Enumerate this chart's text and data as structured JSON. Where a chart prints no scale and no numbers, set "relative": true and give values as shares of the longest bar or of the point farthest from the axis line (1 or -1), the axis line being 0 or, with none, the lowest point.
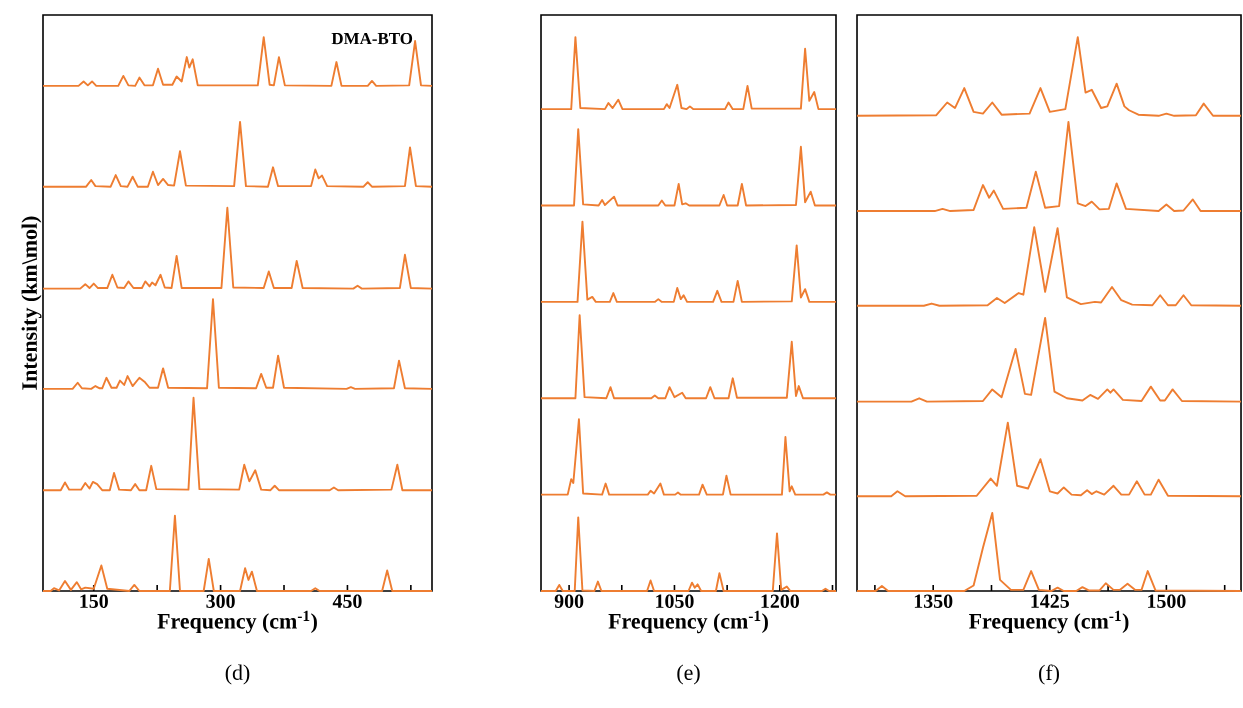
{
  "chart_data": [
    {
      "type": "line",
      "relative": true,
      "xlabel": "Frequency (cm$^{-1}$)",
      "ylabel": "Intensity (km\\mol)",
      "subtitle": "(d)",
      "annotations": [
        "DMA-BTO"
      ],
      "xlim": [
        90,
        550
      ],
      "xticks": [
        150,
        {
          "value": 225,
          "label": null
        },
        300,
        {
          "value": 375,
          "label": null
        },
        450,
        {
          "value": 525,
          "label": null
        }
      ],
      "series": [
        {
          "color": "#ee7d31",
          "x": [
            90,
            99,
            103,
            109,
            116,
            123,
            130,
            135,
            140,
            150,
            159,
            166,
            192,
            198,
            204,
            240,
            246,
            252,
            280,
            286,
            292,
            323,
            329,
            333,
            337,
            343,
            407,
            412,
            417,
            491,
            497,
            503,
            550
          ],
          "values": [
            0,
            0,
            0.005,
            0.001,
            0.018,
            0.002,
            0.016,
            0.003,
            0.006,
            0.004,
            0.046,
            0.004,
            0,
            0.011,
            0,
            0,
            0.136,
            0,
            0,
            0.058,
            0,
            0,
            0.041,
            0.02,
            0.035,
            0,
            0,
            0.005,
            0,
            0,
            0.037,
            0,
            0
          ]
        },
        {
          "color": "#ee7d31",
          "x": [
            90,
            111,
            116,
            121,
            135,
            140,
            145,
            149,
            154,
            160,
            169,
            174,
            180,
            194,
            199,
            204,
            212,
            218,
            224,
            262,
            268,
            275,
            322,
            328,
            334,
            341,
            348,
            359,
            364,
            369,
            429,
            434,
            439,
            502,
            509,
            515,
            550
          ],
          "values": [
            0.182,
            0.182,
            0.196,
            0.183,
            0.183,
            0.195,
            0.185,
            0.197,
            0.193,
            0.182,
            0.182,
            0.213,
            0.183,
            0.182,
            0.193,
            0.182,
            0.182,
            0.226,
            0.184,
            0.183,
            0.349,
            0.184,
            0.183,
            0.228,
            0.198,
            0.218,
            0.183,
            0.182,
            0.19,
            0.182,
            0.182,
            0.187,
            0.182,
            0.183,
            0.228,
            0.182,
            0.182
          ]
        },
        {
          "color": "#ee7d31",
          "x": [
            90,
            125,
            131,
            136,
            147,
            152,
            157,
            160,
            165,
            171,
            177,
            181,
            186,
            190,
            196,
            204,
            210,
            216,
            226,
            232,
            238,
            284,
            291,
            298,
            342,
            348,
            354,
            362,
            368,
            375,
            449,
            454,
            459,
            505,
            511,
            518,
            550
          ],
          "values": [
            0.365,
            0.365,
            0.376,
            0.366,
            0.365,
            0.37,
            0.366,
            0.366,
            0.385,
            0.367,
            0.367,
            0.38,
            0.372,
            0.388,
            0.37,
            0.385,
            0.378,
            0.367,
            0.367,
            0.402,
            0.367,
            0.366,
            0.527,
            0.367,
            0.366,
            0.392,
            0.367,
            0.367,
            0.425,
            0.367,
            0.365,
            0.368,
            0.365,
            0.366,
            0.416,
            0.366,
            0.365
          ]
        },
        {
          "color": "#ee7d31",
          "x": [
            90,
            134,
            140,
            145,
            150,
            155,
            166,
            172,
            178,
            186,
            191,
            197,
            207,
            211,
            216,
            219,
            223,
            229,
            234,
            242,
            248,
            254,
            301,
            308,
            315,
            351,
            357,
            363,
            384,
            390,
            397,
            457,
            462,
            467,
            512,
            518,
            525,
            550
          ],
          "values": [
            0.546,
            0.546,
            0.554,
            0.547,
            0.555,
            0.547,
            0.547,
            0.571,
            0.548,
            0.547,
            0.559,
            0.547,
            0.547,
            0.559,
            0.55,
            0.557,
            0.552,
            0.571,
            0.548,
            0.547,
            0.605,
            0.547,
            0.547,
            0.692,
            0.548,
            0.547,
            0.577,
            0.547,
            0.547,
            0.596,
            0.547,
            0.546,
            0.551,
            0.546,
            0.547,
            0.607,
            0.547,
            0.546
          ]
        },
        {
          "color": "#ee7d31",
          "x": [
            90,
            141,
            147,
            152,
            170,
            176,
            182,
            190,
            196,
            202,
            214,
            220,
            226,
            232,
            238,
            245,
            252,
            259,
            316,
            323,
            330,
            356,
            362,
            368,
            407,
            412,
            416,
            420,
            426,
            469,
            474,
            479,
            518,
            524,
            531,
            550
          ],
          "values": [
            0.73,
            0.73,
            0.742,
            0.731,
            0.73,
            0.751,
            0.731,
            0.73,
            0.748,
            0.73,
            0.73,
            0.757,
            0.733,
            0.744,
            0.733,
            0.732,
            0.794,
            0.732,
            0.731,
            0.847,
            0.731,
            0.73,
            0.765,
            0.731,
            0.731,
            0.761,
            0.745,
            0.75,
            0.731,
            0.73,
            0.738,
            0.73,
            0.731,
            0.801,
            0.731,
            0.73
          ]
        },
        {
          "color": "#ee7d31",
          "x": [
            90,
            132,
            138,
            143,
            148,
            153,
            179,
            185,
            191,
            199,
            204,
            210,
            220,
            226,
            232,
            243,
            248,
            254,
            260,
            263,
            267,
            273,
            344,
            351,
            358,
            363,
            369,
            376,
            431,
            437,
            443,
            474,
            479,
            484,
            523,
            530,
            537,
            550
          ],
          "values": [
            0.912,
            0.912,
            0.92,
            0.913,
            0.92,
            0.912,
            0.912,
            0.93,
            0.913,
            0.912,
            0.927,
            0.913,
            0.913,
            0.943,
            0.914,
            0.914,
            0.929,
            0.92,
            0.964,
            0.945,
            0.96,
            0.913,
            0.913,
            1.0,
            0.914,
            0.913,
            0.964,
            0.913,
            0.912,
            0.955,
            0.912,
            0.912,
            0.921,
            0.912,
            0.913,
            0.993,
            0.913,
            0.912
          ]
        }
      ]
    },
    {
      "type": "line",
      "relative": true,
      "xlabel": "Frequency (cm$^{-1}$)",
      "subtitle": "(e)",
      "xlim": [
        860,
        1280
      ],
      "xticks": [
        900,
        {
          "value": 975,
          "label": null
        },
        1050,
        {
          "value": 1125,
          "label": null
        },
        1200,
        {
          "value": 1275,
          "label": null
        }
      ],
      "series": [
        {
          "color": "#ee7d31",
          "x": [
            860,
            881,
            886,
            891,
            908,
            913,
            919,
            936,
            941,
            946,
            1011,
            1016,
            1021,
            1070,
            1075,
            1079,
            1083,
            1088,
            1109,
            1114,
            1120,
            1190,
            1196,
            1202,
            1210,
            1215,
            1260,
            1265,
            1270,
            1280
          ],
          "values": [
            0,
            0,
            0.011,
            0,
            0,
            0.133,
            0.001,
            0,
            0.017,
            0,
            0,
            0.019,
            0,
            0,
            0.015,
            0.006,
            0.012,
            0,
            0,
            0.032,
            0,
            0,
            0.104,
            0.002,
            0.008,
            0,
            0,
            0.004,
            0,
            0
          ]
        },
        {
          "color": "#ee7d31",
          "x": [
            860,
            898,
            903,
            906,
            914,
            920,
            947,
            952,
            957,
            1012,
            1016,
            1021,
            1030,
            1035,
            1051,
            1055,
            1059,
            1085,
            1090,
            1096,
            1119,
            1124,
            1130,
            1203,
            1208,
            1214,
            1217,
            1222,
            1262,
            1267,
            1272,
            1280
          ],
          "values": [
            0.174,
            0.174,
            0.202,
            0.195,
            0.31,
            0.176,
            0.174,
            0.194,
            0.174,
            0.174,
            0.181,
            0.176,
            0.194,
            0.174,
            0.174,
            0.178,
            0.174,
            0.174,
            0.192,
            0.174,
            0.174,
            0.208,
            0.174,
            0.174,
            0.278,
            0.18,
            0.189,
            0.174,
            0.174,
            0.178,
            0.174,
            0.174
          ]
        },
        {
          "color": "#ee7d31",
          "x": [
            860,
            909,
            915,
            922,
            953,
            959,
            964,
            1017,
            1022,
            1027,
            1037,
            1043,
            1050,
            1061,
            1066,
            1095,
            1101,
            1107,
            1127,
            1133,
            1139,
            1210,
            1217,
            1223,
            1227,
            1233,
            1280
          ],
          "values": [
            0.348,
            0.348,
            0.498,
            0.35,
            0.348,
            0.368,
            0.348,
            0.348,
            0.353,
            0.348,
            0.348,
            0.368,
            0.35,
            0.358,
            0.348,
            0.348,
            0.368,
            0.348,
            0.348,
            0.384,
            0.349,
            0.349,
            0.45,
            0.352,
            0.37,
            0.348,
            0.348
          ]
        },
        {
          "color": "#ee7d31",
          "x": [
            860,
            912,
            919,
            926,
            933,
            938,
            958,
            963,
            968,
            1022,
            1027,
            1032,
            1049,
            1054,
            1059,
            1063,
            1068,
            1105,
            1111,
            1117,
            1134,
            1140,
            1146,
            1217,
            1224,
            1230,
            1236,
            1242,
            1280
          ],
          "values": [
            0.522,
            0.522,
            0.667,
            0.526,
            0.531,
            0.522,
            0.522,
            0.538,
            0.522,
            0.522,
            0.527,
            0.522,
            0.522,
            0.547,
            0.527,
            0.534,
            0.522,
            0.522,
            0.542,
            0.522,
            0.522,
            0.56,
            0.522,
            0.523,
            0.624,
            0.53,
            0.545,
            0.522,
            0.522
          ]
        },
        {
          "color": "#ee7d31",
          "x": [
            860,
            907,
            913,
            920,
            942,
            947,
            951,
            964,
            969,
            1027,
            1032,
            1037,
            1050,
            1056,
            1061,
            1066,
            1071,
            1114,
            1120,
            1125,
            1140,
            1146,
            1152,
            1223,
            1230,
            1236,
            1244,
            1250,
            1280
          ],
          "values": [
            0.696,
            0.696,
            0.834,
            0.698,
            0.696,
            0.706,
            0.697,
            0.712,
            0.696,
            0.696,
            0.705,
            0.696,
            0.696,
            0.735,
            0.698,
            0.7,
            0.696,
            0.696,
            0.715,
            0.696,
            0.696,
            0.735,
            0.696,
            0.697,
            0.802,
            0.702,
            0.721,
            0.696,
            0.696
          ]
        },
        {
          "color": "#ee7d31",
          "x": [
            860,
            903,
            909,
            916,
            951,
            956,
            962,
            970,
            976,
            1035,
            1039,
            1043,
            1054,
            1060,
            1067,
            1072,
            1077,
            1122,
            1127,
            1133,
            1148,
            1154,
            1160,
            1230,
            1236,
            1242,
            1249,
            1255,
            1280
          ],
          "values": [
            0.87,
            0.87,
            1.0,
            0.872,
            0.87,
            0.881,
            0.872,
            0.887,
            0.87,
            0.87,
            0.879,
            0.872,
            0.914,
            0.872,
            0.87,
            0.875,
            0.87,
            0.87,
            0.882,
            0.87,
            0.87,
            0.912,
            0.871,
            0.871,
            0.979,
            0.885,
            0.901,
            0.87,
            0.87
          ]
        }
      ]
    },
    {
      "type": "line",
      "relative": true,
      "xlabel": "Frequency (cm$^{-1}$)",
      "subtitle": "(f)",
      "xlim": [
        1301,
        1548
      ],
      "xticks": [
        {
          "value": 1312.5,
          "label": null
        },
        1350,
        {
          "value": 1387.5,
          "label": null
        },
        1425,
        {
          "value": 1462.5,
          "label": null
        },
        1500,
        {
          "value": 1537.5,
          "label": null
        }
      ],
      "series": [
        {
          "color": "#ee7d31",
          "x": [
            1301,
            1313,
            1317,
            1321,
            1370,
            1376,
            1382,
            1388,
            1393,
            1400,
            1408,
            1413,
            1418,
            1426,
            1430,
            1434,
            1442,
            1446,
            1450,
            1457,
            1461,
            1466,
            1470,
            1475,
            1480,
            1484,
            1488,
            1493,
            1548
          ],
          "values": [
            0,
            0,
            0.009,
            0,
            0,
            0.01,
            0.078,
            0.141,
            0.02,
            0.002,
            0.002,
            0.036,
            0.002,
            0,
            0.006,
            0,
            0,
            0.007,
            0.001,
            0.001,
            0.014,
            0.002,
            0.002,
            0.013,
            0.002,
            0.002,
            0.036,
            0.001,
            0
          ]
        },
        {
          "color": "#ee7d31",
          "x": [
            1301,
            1323,
            1327,
            1332,
            1378,
            1387,
            1391,
            1398,
            1404,
            1411,
            1419,
            1425,
            1430,
            1434,
            1439,
            1445,
            1449,
            1452,
            1455,
            1460,
            1466,
            1471,
            1476,
            1481,
            1486,
            1490,
            1495,
            1501,
            1548
          ],
          "values": [
            0.171,
            0.171,
            0.18,
            0.171,
            0.172,
            0.203,
            0.19,
            0.304,
            0.19,
            0.185,
            0.238,
            0.18,
            0.176,
            0.187,
            0.174,
            0.173,
            0.182,
            0.175,
            0.18,
            0.174,
            0.19,
            0.174,
            0.174,
            0.198,
            0.174,
            0.174,
            0.201,
            0.172,
            0.171
          ]
        },
        {
          "color": "#ee7d31",
          "x": [
            1301,
            1336,
            1341,
            1346,
            1382,
            1388,
            1394,
            1403,
            1409,
            1413,
            1422,
            1428,
            1436,
            1446,
            1451,
            1456,
            1462,
            1464,
            1466,
            1472,
            1484,
            1490,
            1496,
            1499,
            1504,
            1510,
            1548
          ],
          "values": [
            0.342,
            0.342,
            0.348,
            0.342,
            0.343,
            0.364,
            0.35,
            0.437,
            0.356,
            0.354,
            0.493,
            0.36,
            0.348,
            0.344,
            0.354,
            0.347,
            0.364,
            0.358,
            0.364,
            0.345,
            0.343,
            0.369,
            0.344,
            0.344,
            0.364,
            0.343,
            0.342
          ]
        },
        {
          "color": "#ee7d31",
          "x": [
            1301,
            1344,
            1349,
            1354,
            1385,
            1391,
            1396,
            1405,
            1408,
            1415,
            1420,
            1422,
            1430,
            1436,
            1445,
            1454,
            1458,
            1465,
            1471,
            1478,
            1491,
            1496,
            1501,
            1506,
            1511,
            1516,
            1548
          ],
          "values": [
            0.515,
            0.515,
            0.519,
            0.515,
            0.516,
            0.529,
            0.52,
            0.538,
            0.535,
            0.657,
            0.575,
            0.54,
            0.655,
            0.53,
            0.518,
            0.522,
            0.521,
            0.549,
            0.525,
            0.517,
            0.516,
            0.534,
            0.516,
            0.516,
            0.534,
            0.516,
            0.515
          ]
        },
        {
          "color": "#ee7d31",
          "x": [
            1301,
            1351,
            1356,
            1361,
            1376,
            1382,
            1386,
            1389,
            1395,
            1410,
            1416,
            1422,
            1431,
            1437,
            1443,
            1448,
            1452,
            1457,
            1463,
            1468,
            1474,
            1495,
            1500,
            1505,
            1511,
            1517,
            1522,
            1548
          ],
          "values": [
            0.686,
            0.686,
            0.69,
            0.686,
            0.688,
            0.733,
            0.71,
            0.723,
            0.69,
            0.692,
            0.757,
            0.692,
            0.695,
            0.847,
            0.7,
            0.695,
            0.703,
            0.689,
            0.69,
            0.736,
            0.69,
            0.686,
            0.698,
            0.686,
            0.687,
            0.707,
            0.686,
            0.686
          ]
        },
        {
          "color": "#ee7d31",
          "x": [
            1301,
            1352,
            1359,
            1364,
            1370,
            1376,
            1382,
            1388,
            1394,
            1412,
            1419,
            1425,
            1435,
            1443,
            1448,
            1452,
            1458,
            1462,
            1468,
            1473,
            1476,
            1482,
            1495,
            1500,
            1505,
            1519,
            1524,
            1530,
            1548
          ],
          "values": [
            0.858,
            0.859,
            0.882,
            0.872,
            0.908,
            0.865,
            0.862,
            0.882,
            0.86,
            0.862,
            0.908,
            0.865,
            0.87,
            1.0,
            0.9,
            0.905,
            0.872,
            0.875,
            0.916,
            0.875,
            0.868,
            0.86,
            0.858,
            0.862,
            0.858,
            0.859,
            0.88,
            0.858,
            0.858
          ]
        }
      ]
    }
  ]
}
